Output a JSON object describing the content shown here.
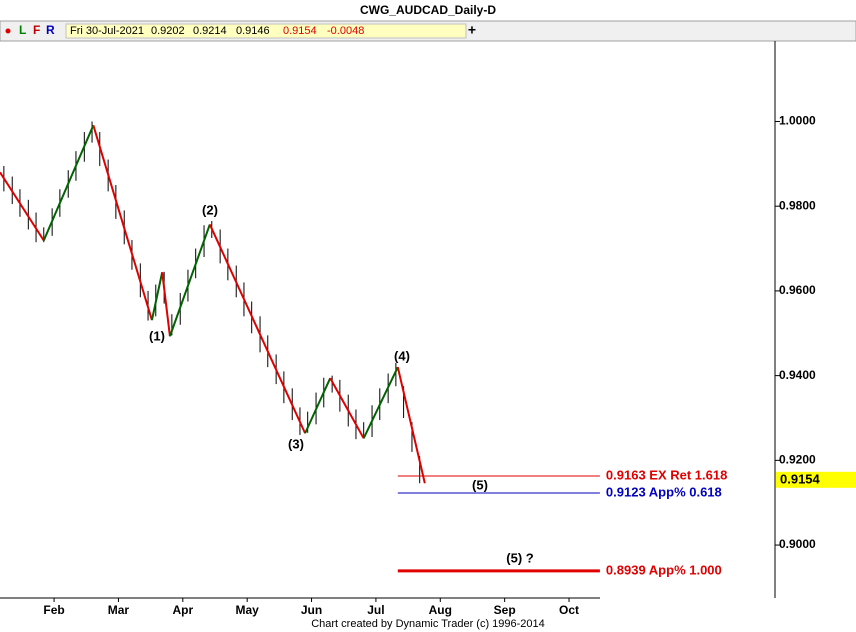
{
  "chart_data": {
    "type": "ohlc",
    "title": "CWG_AUDCAD_Daily-D",
    "toolbar": [
      "L",
      "F",
      "R"
    ],
    "info": {
      "date": "Fri 30-Jul-2021",
      "open": "0.9202",
      "high": "0.9214",
      "low": "0.9146",
      "close": "0.9154",
      "change": "-0.0048"
    },
    "footer": "Chart created by Dynamic Trader (c) 1996-2014",
    "xlim": [
      1.16,
      13.2
    ],
    "xticks": [
      {
        "value": 2,
        "label": "Feb"
      },
      {
        "value": 3,
        "label": "Mar"
      },
      {
        "value": 4,
        "label": "Apr"
      },
      {
        "value": 5,
        "label": "May"
      },
      {
        "value": 6,
        "label": "Jun"
      },
      {
        "value": 7,
        "label": "Jul"
      },
      {
        "value": 8,
        "label": "Aug"
      },
      {
        "value": 9,
        "label": "Sep"
      },
      {
        "value": 10,
        "label": "Oct"
      }
    ],
    "ylim": [
      0.8875,
      1.019
    ],
    "yticks": [
      {
        "value": 0.9,
        "label": "0.9000"
      },
      {
        "value": 0.92,
        "label": "0.9200"
      },
      {
        "value": 0.94,
        "label": "0.9400"
      },
      {
        "value": 0.96,
        "label": "0.9600"
      },
      {
        "value": 0.98,
        "label": "0.9800"
      },
      {
        "value": 1.0,
        "label": "1.0000"
      }
    ],
    "last_price": {
      "value": 0.9154,
      "label": "0.9154"
    },
    "bars": {
      "color": "#000000",
      "x": [
        1.22,
        1.35,
        1.47,
        1.6,
        1.72,
        1.84,
        1.97,
        2.09,
        2.22,
        2.34,
        2.47,
        2.59,
        2.71,
        2.84,
        2.96,
        3.09,
        3.21,
        3.34,
        3.46,
        3.58,
        3.71,
        3.83,
        3.96,
        4.08,
        4.2,
        4.33,
        4.45,
        4.58,
        4.7,
        4.83,
        4.95,
        5.07,
        5.2,
        5.32,
        5.45,
        5.57,
        5.7,
        5.82,
        5.94,
        6.07,
        6.19,
        6.32,
        6.44,
        6.57,
        6.69,
        6.81,
        6.94,
        7.06,
        7.19,
        7.31,
        7.43,
        7.56,
        7.68
      ],
      "high": [
        0.9895,
        0.987,
        0.984,
        0.9815,
        0.9785,
        0.975,
        0.9795,
        0.984,
        0.9885,
        0.993,
        0.9975,
        1.0,
        0.9975,
        0.991,
        0.985,
        0.979,
        0.972,
        0.9665,
        0.96,
        0.9615,
        0.9645,
        0.9545,
        0.9595,
        0.965,
        0.97,
        0.9755,
        0.9765,
        0.9745,
        0.97,
        0.966,
        0.962,
        0.9575,
        0.954,
        0.9495,
        0.945,
        0.941,
        0.937,
        0.9325,
        0.9315,
        0.936,
        0.9395,
        0.94,
        0.939,
        0.9355,
        0.932,
        0.929,
        0.933,
        0.937,
        0.9405,
        0.943,
        0.9375,
        0.929,
        0.921
      ],
      "low": [
        0.9835,
        0.9805,
        0.9775,
        0.9745,
        0.9715,
        0.9715,
        0.973,
        0.9775,
        0.982,
        0.986,
        0.9905,
        0.995,
        0.9895,
        0.9835,
        0.977,
        0.971,
        0.965,
        0.9585,
        0.953,
        0.954,
        0.957,
        0.9495,
        0.952,
        0.9575,
        0.963,
        0.968,
        0.9725,
        0.9665,
        0.9625,
        0.9585,
        0.954,
        0.95,
        0.9455,
        0.942,
        0.938,
        0.9335,
        0.9295,
        0.926,
        0.9265,
        0.9285,
        0.9325,
        0.936,
        0.9315,
        0.928,
        0.925,
        0.9252,
        0.9255,
        0.9295,
        0.9335,
        0.9375,
        0.93,
        0.922,
        0.9146
      ]
    },
    "wave": {
      "x": [
        1.16,
        1.84,
        2.61,
        3.52,
        3.68,
        3.8,
        4.42,
        5.9,
        6.29,
        6.81,
        7.34,
        7.76
      ],
      "values": [
        0.988,
        0.9719,
        0.9991,
        0.9531,
        0.9644,
        0.9493,
        0.9757,
        0.9264,
        0.9394,
        0.9252,
        0.942,
        0.9146
      ],
      "up_color": "#006400",
      "down_color": "#e00000"
    },
    "annotations": [
      "(1)",
      "(2)",
      "(3)",
      "(4)",
      "(5)",
      "(5) ?"
    ],
    "levels": [
      {
        "value": 0.9163,
        "label": "0.9163 EX Ret 1.618",
        "color": "#e00000",
        "x": [
          7.34,
          10.48
        ]
      },
      {
        "value": 0.9123,
        "label": "0.9123 App% 0.618",
        "color": "#0000c0",
        "x": [
          7.34,
          10.48
        ]
      },
      {
        "value": 0.8939,
        "label": "0.8939 App% 1.000",
        "color": "#e00000",
        "x": [
          7.34,
          10.48
        ]
      }
    ]
  }
}
